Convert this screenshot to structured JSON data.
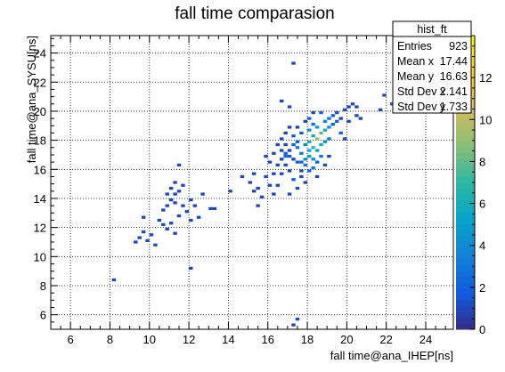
{
  "chart_data": {
    "type": "heatmap",
    "title": "fall time comparasion",
    "xlabel": "fall time@ana_IHEP[ns]",
    "ylabel": "fall time@ana_SYSU[ns]",
    "xlim": [
      5,
      25.4
    ],
    "ylim": [
      5,
      25.2
    ],
    "x_ticks": [
      6,
      8,
      10,
      12,
      14,
      16,
      18,
      20,
      22,
      24
    ],
    "y_ticks": [
      6,
      8,
      10,
      12,
      14,
      16,
      18,
      20,
      22,
      24
    ],
    "grid": true,
    "bin_size": 0.2,
    "color_scale": {
      "min": 0,
      "max": 14,
      "ticks": [
        0,
        2,
        4,
        6,
        8,
        10,
        12
      ],
      "palette": [
        "#352a87",
        "#0f5cdd",
        "#1481d6",
        "#06a4ca",
        "#2eb7a4",
        "#87bf77",
        "#d1bb59",
        "#fec832",
        "#f9fb0e"
      ]
    },
    "stats_box": {
      "title": "hist_ft",
      "rows": [
        {
          "label": "Entries",
          "value": "923"
        },
        {
          "label": "Mean x",
          "value": "17.44"
        },
        {
          "label": "Mean y",
          "value": "16.63"
        },
        {
          "label": "Std Dev x",
          "value": "2.141"
        },
        {
          "label": "Std Dev y",
          "value": "1.733"
        }
      ]
    },
    "points": [
      [
        8.1,
        8.3,
        1
      ],
      [
        9.2,
        10.9,
        1
      ],
      [
        9.4,
        11.2,
        1
      ],
      [
        9.6,
        11.6,
        1
      ],
      [
        9.8,
        11.0,
        1
      ],
      [
        10.0,
        11.4,
        1
      ],
      [
        9.6,
        12.6,
        1
      ],
      [
        10.2,
        10.7,
        1
      ],
      [
        10.4,
        12.4,
        1
      ],
      [
        10.6,
        12.1,
        1
      ],
      [
        10.8,
        13.4,
        1
      ],
      [
        11.0,
        13.8,
        1
      ],
      [
        11.2,
        14.2,
        1
      ],
      [
        10.6,
        13.1,
        1
      ],
      [
        11.4,
        12.7,
        1
      ],
      [
        11.0,
        12.2,
        1
      ],
      [
        10.8,
        11.8,
        1
      ],
      [
        11.2,
        11.5,
        1
      ],
      [
        11.6,
        13.4,
        1
      ],
      [
        11.8,
        13.0,
        1
      ],
      [
        12.0,
        13.8,
        1
      ],
      [
        12.2,
        13.4,
        1
      ],
      [
        11.4,
        14.4,
        1
      ],
      [
        11.6,
        14.8,
        1
      ],
      [
        11.0,
        14.6,
        1
      ],
      [
        11.2,
        15.0,
        1
      ],
      [
        10.8,
        14.2,
        1
      ],
      [
        11.4,
        16.2,
        1
      ],
      [
        12.6,
        14.2,
        1
      ],
      [
        13.0,
        13.2,
        1
      ],
      [
        13.2,
        13.2,
        1
      ],
      [
        12.4,
        12.6,
        1
      ],
      [
        12.0,
        9.1,
        1
      ],
      [
        12.0,
        12.4,
        1
      ],
      [
        11.2,
        13.6,
        1
      ],
      [
        14.0,
        14.4,
        1
      ],
      [
        14.6,
        15.4,
        1
      ],
      [
        15.2,
        14.4,
        1
      ],
      [
        15.4,
        14.6,
        1
      ],
      [
        15.6,
        14.0,
        1
      ],
      [
        15.8,
        15.4,
        1
      ],
      [
        16.0,
        14.8,
        1
      ],
      [
        16.2,
        15.6,
        1
      ],
      [
        16.4,
        16.2,
        1
      ],
      [
        16.6,
        16.6,
        1
      ],
      [
        16.8,
        16.2,
        1
      ],
      [
        17.0,
        15.8,
        1
      ],
      [
        16.8,
        17.6,
        1
      ],
      [
        17.0,
        17.2,
        1
      ],
      [
        17.2,
        16.6,
        1
      ],
      [
        16.6,
        15.6,
        1
      ],
      [
        16.4,
        14.8,
        1
      ],
      [
        16.0,
        16.4,
        1
      ],
      [
        16.2,
        17.0,
        1
      ],
      [
        16.4,
        17.6,
        1
      ],
      [
        15.8,
        16.8,
        1
      ],
      [
        16.6,
        18.0,
        1
      ],
      [
        16.8,
        18.4,
        1
      ],
      [
        17.0,
        18.8,
        1
      ],
      [
        17.2,
        18.2,
        2
      ],
      [
        17.4,
        17.8,
        2
      ],
      [
        17.4,
        16.4,
        2
      ],
      [
        17.6,
        17.0,
        3
      ],
      [
        17.6,
        15.4,
        1
      ],
      [
        17.8,
        15.0,
        1
      ],
      [
        17.4,
        14.6,
        1
      ],
      [
        17.2,
        15.2,
        2
      ],
      [
        17.0,
        14.2,
        1
      ],
      [
        17.8,
        16.2,
        3
      ],
      [
        17.8,
        17.6,
        4
      ],
      [
        18.0,
        17.8,
        6
      ],
      [
        18.0,
        16.8,
        5
      ],
      [
        18.2,
        17.4,
        7
      ],
      [
        18.2,
        18.2,
        6
      ],
      [
        18.4,
        18.0,
        9
      ],
      [
        18.4,
        17.2,
        5
      ],
      [
        18.6,
        18.4,
        8
      ],
      [
        18.6,
        17.6,
        6
      ],
      [
        18.0,
        18.6,
        4
      ],
      [
        18.2,
        19.0,
        3
      ],
      [
        18.4,
        18.8,
        5
      ],
      [
        18.8,
        18.6,
        6
      ],
      [
        18.8,
        19.2,
        4
      ],
      [
        19.0,
        18.8,
        4
      ],
      [
        19.0,
        19.4,
        3
      ],
      [
        19.2,
        19.0,
        2
      ],
      [
        19.2,
        19.6,
        2
      ],
      [
        19.4,
        19.2,
        2
      ],
      [
        19.4,
        19.8,
        1
      ],
      [
        19.6,
        19.4,
        1
      ],
      [
        19.6,
        18.4,
        2
      ],
      [
        19.8,
        18.0,
        1
      ],
      [
        19.0,
        18.0,
        3
      ],
      [
        18.8,
        17.8,
        4
      ],
      [
        18.6,
        16.8,
        3
      ],
      [
        18.4,
        16.4,
        2
      ],
      [
        18.2,
        16.0,
        3
      ],
      [
        18.0,
        15.8,
        2
      ],
      [
        18.4,
        15.4,
        1
      ],
      [
        17.6,
        18.4,
        2
      ],
      [
        17.4,
        18.8,
        1
      ],
      [
        17.8,
        19.2,
        1
      ],
      [
        18.0,
        19.4,
        2
      ],
      [
        18.2,
        19.8,
        1
      ],
      [
        18.6,
        19.8,
        2
      ],
      [
        19.8,
        20.0,
        1
      ],
      [
        20.0,
        20.2,
        1
      ],
      [
        20.2,
        20.4,
        1
      ],
      [
        20.4,
        20.2,
        1
      ],
      [
        20.4,
        19.6,
        1
      ],
      [
        20.0,
        19.2,
        1
      ],
      [
        20.6,
        19.4,
        1
      ],
      [
        16.6,
        20.6,
        1
      ],
      [
        17.0,
        20.2,
        1
      ],
      [
        17.2,
        23.2,
        1
      ],
      [
        17.2,
        5.2,
        1
      ],
      [
        17.4,
        5.6,
        1
      ],
      [
        17.0,
        16.8,
        2
      ],
      [
        16.8,
        17.0,
        2
      ],
      [
        16.6,
        17.2,
        1
      ],
      [
        18.8,
        16.2,
        1
      ],
      [
        19.0,
        16.8,
        1
      ],
      [
        17.6,
        15.8,
        1
      ],
      [
        15.0,
        15.0,
        1
      ],
      [
        15.2,
        15.6,
        1
      ],
      [
        16.2,
        14.2,
        1
      ],
      [
        15.4,
        13.4,
        1
      ],
      [
        21.8,
        21.0,
        1
      ],
      [
        21.6,
        20.0,
        1
      ],
      [
        22.2,
        20.4,
        1
      ],
      [
        17.8,
        16.6,
        4
      ],
      [
        18.0,
        17.2,
        5
      ],
      [
        18.2,
        16.6,
        4
      ],
      [
        17.6,
        16.4,
        2
      ],
      [
        16.8,
        16.8,
        2
      ],
      [
        17.4,
        17.4,
        3
      ],
      [
        17.2,
        17.6,
        2
      ]
    ]
  }
}
